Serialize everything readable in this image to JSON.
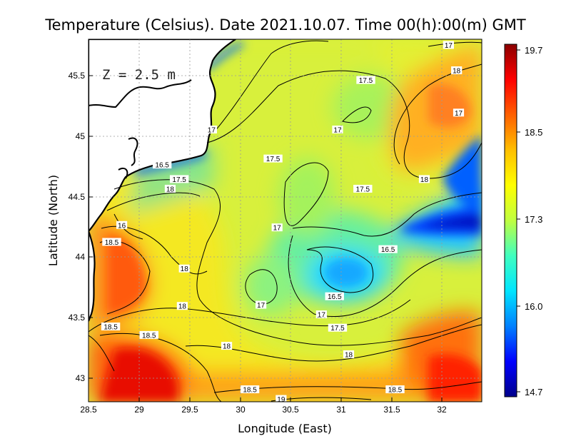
{
  "title": "Temperature (Celsius). Date 2021.10.07. Time 00(h):00(m)  GMT",
  "depth_label": "Z = 2.5 m",
  "x_axis": {
    "label": "Longitude (East)",
    "range": [
      28.5,
      32.4
    ],
    "ticks": [
      "28.5",
      "29",
      "29.5",
      "30",
      "30.5",
      "31",
      "31.5",
      "32"
    ]
  },
  "y_axis": {
    "label": "Latitude (North)",
    "range": [
      42.8,
      45.8
    ],
    "ticks": [
      "43",
      "43.5",
      "44",
      "44.5",
      "45",
      "45.5"
    ]
  },
  "colorbar": {
    "ticks": [
      "19.7",
      "18.5",
      "17.3",
      "16.0",
      "14.7"
    ],
    "min": 14.7,
    "max": 19.7,
    "colors": [
      "#00008b",
      "#0000ff",
      "#0080ff",
      "#00e5ff",
      "#40ffbf",
      "#c0ff40",
      "#ffff00",
      "#ffbf00",
      "#ff6000",
      "#ff0000",
      "#8b0000"
    ]
  },
  "contour_labels": [
    {
      "text": "17",
      "lon": 32.07,
      "lat": 45.75
    },
    {
      "text": "18",
      "lon": 32.15,
      "lat": 45.54
    },
    {
      "text": "17.5",
      "lon": 31.25,
      "lat": 45.46
    },
    {
      "text": "17",
      "lon": 32.17,
      "lat": 45.19
    },
    {
      "text": "17",
      "lon": 30.97,
      "lat": 45.05
    },
    {
      "text": "17",
      "lon": 29.72,
      "lat": 45.05
    },
    {
      "text": "16.5",
      "lon": 29.23,
      "lat": 44.76
    },
    {
      "text": "17.5",
      "lon": 30.33,
      "lat": 44.81
    },
    {
      "text": "17.5",
      "lon": 29.4,
      "lat": 44.64
    },
    {
      "text": "18",
      "lon": 31.83,
      "lat": 44.64
    },
    {
      "text": "18",
      "lon": 29.31,
      "lat": 44.56
    },
    {
      "text": "17.5",
      "lon": 31.22,
      "lat": 44.56
    },
    {
      "text": "16",
      "lon": 28.83,
      "lat": 44.26
    },
    {
      "text": "17",
      "lon": 30.37,
      "lat": 44.24
    },
    {
      "text": "18.5",
      "lon": 28.73,
      "lat": 44.12
    },
    {
      "text": "16.5",
      "lon": 31.47,
      "lat": 44.06
    },
    {
      "text": "18",
      "lon": 29.45,
      "lat": 43.9
    },
    {
      "text": "16.5",
      "lon": 30.94,
      "lat": 43.67
    },
    {
      "text": "17",
      "lon": 30.21,
      "lat": 43.6
    },
    {
      "text": "17",
      "lon": 30.81,
      "lat": 43.52
    },
    {
      "text": "18",
      "lon": 29.43,
      "lat": 43.59
    },
    {
      "text": "18.5",
      "lon": 28.72,
      "lat": 43.42
    },
    {
      "text": "17.5",
      "lon": 30.97,
      "lat": 43.41
    },
    {
      "text": "18.5",
      "lon": 29.1,
      "lat": 43.35
    },
    {
      "text": "18",
      "lon": 29.87,
      "lat": 43.26
    },
    {
      "text": "18",
      "lon": 31.08,
      "lat": 43.19
    },
    {
      "text": "18.5",
      "lon": 30.1,
      "lat": 42.9
    },
    {
      "text": "18.5",
      "lon": 31.54,
      "lat": 42.9
    },
    {
      "text": "19",
      "lon": 30.41,
      "lat": 42.82
    }
  ]
}
